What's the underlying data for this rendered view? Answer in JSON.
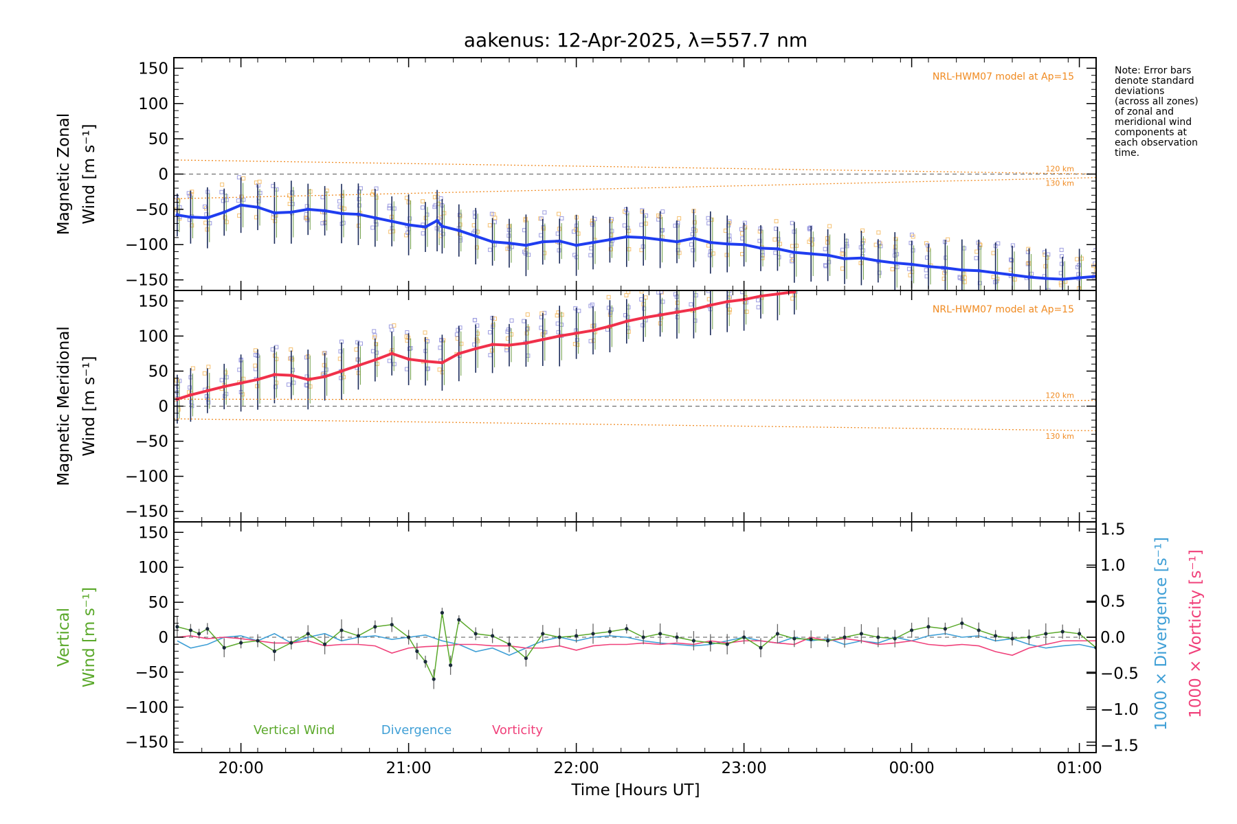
{
  "title": "aakenus: 12-Apr-2025, λ=557.7 nm",
  "note_lines": [
    "Note: Error bars",
    "denote standard",
    "deviations",
    "(across all zones)",
    "of zonal and",
    "meridional wind",
    "components at",
    "each observation",
    "time."
  ],
  "xlabel": "Time [Hours UT]",
  "colors": {
    "zonal": "#1f3df0",
    "meridional": "#f0304a",
    "vertical": "#5aa82a",
    "divergence": "#3f9fd6",
    "vorticity": "#f0407a",
    "model": "#f08a20",
    "scatter": "#9c9ce0"
  },
  "chart_data": [
    {
      "type": "line",
      "panel": "zonal",
      "ylabel": [
        "Magnetic Zonal",
        "Wind [m s⁻¹]"
      ],
      "ylim": [
        -165,
        165
      ],
      "yticks": [
        "150",
        "100",
        "50",
        "0",
        "−50",
        "−100",
        "−150"
      ],
      "model_label": "NRL-HWM07 model at Ap=15",
      "model_alt_labels": [
        "120 km",
        "130 km"
      ],
      "xlim_hours": [
        19.6,
        25.1
      ],
      "xticks": [
        "20:00",
        "21:00",
        "22:00",
        "23:00",
        "00:00",
        "01:00"
      ],
      "series": [
        {
          "name": "Zonal wind",
          "x": [
            19.62,
            19.7,
            19.8,
            19.9,
            20.0,
            20.1,
            20.2,
            20.3,
            20.4,
            20.5,
            20.6,
            20.7,
            20.8,
            20.9,
            21.0,
            21.1,
            21.17,
            21.2,
            21.3,
            21.4,
            21.5,
            21.6,
            21.7,
            21.8,
            21.9,
            22.0,
            22.1,
            22.2,
            22.3,
            22.4,
            22.5,
            22.6,
            22.7,
            22.8,
            22.9,
            23.0,
            23.1,
            23.2,
            23.3,
            23.4,
            23.5,
            23.6,
            23.7,
            23.8,
            23.9,
            24.0,
            24.1,
            24.2,
            24.3,
            24.4,
            24.5,
            24.6,
            24.7,
            24.8,
            24.9,
            25.0,
            25.1
          ],
          "values": [
            -58,
            -61,
            -62,
            -54,
            -44,
            -47,
            -55,
            -54,
            -50,
            -52,
            -56,
            -57,
            -62,
            -67,
            -72,
            -75,
            -66,
            -74,
            -80,
            -88,
            -96,
            -98,
            -101,
            -96,
            -95,
            -101,
            -97,
            -93,
            -89,
            -90,
            -93,
            -96,
            -91,
            -97,
            -99,
            -100,
            -105,
            -106,
            -111,
            -113,
            -115,
            -120,
            -119,
            -123,
            -126,
            -128,
            -131,
            -133,
            -136,
            -137,
            -140,
            -143,
            -146,
            -148,
            -149,
            -147,
            -145
          ]
        },
        {
          "name": "Model 120 km (zonal)",
          "x": [
            19.6,
            25.1
          ],
          "values": [
            20,
            0
          ]
        },
        {
          "name": "Model 130 km (zonal)",
          "x": [
            19.6,
            25.1
          ],
          "values": [
            -35,
            -5
          ]
        }
      ]
    },
    {
      "type": "line",
      "panel": "meridional",
      "ylabel": [
        "Magnetic Meridional",
        "Wind [m s⁻¹]"
      ],
      "ylim": [
        -165,
        165
      ],
      "yticks": [
        "150",
        "100",
        "50",
        "0",
        "−50",
        "−100",
        "−150"
      ],
      "model_label": "NRL-HWM07 model at Ap=15",
      "model_alt_labels": [
        "120 km",
        "130 km"
      ],
      "series": [
        {
          "name": "Meridional wind",
          "x": [
            19.62,
            19.7,
            19.8,
            19.9,
            20.0,
            20.1,
            20.2,
            20.3,
            20.4,
            20.5,
            20.6,
            20.7,
            20.8,
            20.9,
            21.0,
            21.1,
            21.2,
            21.3,
            21.4,
            21.5,
            21.6,
            21.7,
            21.8,
            21.9,
            22.0,
            22.1,
            22.2,
            22.3,
            22.4,
            22.5,
            22.6,
            22.7,
            22.8,
            22.9,
            23.0,
            23.1,
            23.2,
            23.3
          ],
          "values": [
            10,
            16,
            22,
            28,
            33,
            38,
            45,
            44,
            38,
            42,
            50,
            58,
            66,
            75,
            67,
            64,
            62,
            75,
            82,
            88,
            87,
            90,
            95,
            100,
            104,
            108,
            114,
            121,
            126,
            130,
            134,
            138,
            144,
            149,
            152,
            157,
            160,
            163
          ]
        },
        {
          "name": "Model 120 km (meridional)",
          "x": [
            19.6,
            25.1
          ],
          "values": [
            10,
            8
          ]
        },
        {
          "name": "Model 130 km (meridional)",
          "x": [
            19.6,
            25.1
          ],
          "values": [
            -18,
            -35
          ]
        }
      ]
    },
    {
      "type": "line",
      "panel": "vertical",
      "ylabel": [
        "Vertical",
        "Wind [m s⁻¹]"
      ],
      "ylim": [
        -165,
        165
      ],
      "yticks": [
        "150",
        "100",
        "50",
        "0",
        "−50",
        "−100",
        "−150"
      ],
      "y2label": [
        "1000 × Divergence [s⁻¹]",
        "1000 × Vorticity [s⁻¹]"
      ],
      "y2lim": [
        -1.6,
        1.6
      ],
      "y2ticks": [
        "1.5",
        "1.0",
        "0.5",
        "0.0",
        "−0.5",
        "−1.0",
        "−1.5"
      ],
      "legend": [
        "Vertical Wind",
        "Divergence",
        "Vorticity"
      ],
      "series": [
        {
          "name": "Vertical Wind",
          "x": [
            19.62,
            19.7,
            19.75,
            19.8,
            19.9,
            20.0,
            20.1,
            20.2,
            20.3,
            20.4,
            20.5,
            20.6,
            20.7,
            20.8,
            20.9,
            21.0,
            21.05,
            21.1,
            21.15,
            21.2,
            21.25,
            21.3,
            21.4,
            21.5,
            21.6,
            21.7,
            21.8,
            21.9,
            22.0,
            22.1,
            22.2,
            22.3,
            22.4,
            22.5,
            22.6,
            22.7,
            22.8,
            22.9,
            23.0,
            23.1,
            23.2,
            23.3,
            23.4,
            23.5,
            23.6,
            23.7,
            23.8,
            23.9,
            24.0,
            24.1,
            24.2,
            24.3,
            24.4,
            24.5,
            24.6,
            24.7,
            24.8,
            24.9,
            25.0,
            25.1
          ],
          "values": [
            15,
            10,
            5,
            12,
            -15,
            -8,
            -5,
            -20,
            -8,
            5,
            -10,
            10,
            2,
            15,
            18,
            0,
            -20,
            -35,
            -60,
            35,
            -40,
            25,
            5,
            2,
            -10,
            -30,
            5,
            0,
            2,
            5,
            8,
            12,
            0,
            5,
            0,
            -5,
            -8,
            -10,
            0,
            -15,
            5,
            -2,
            -3,
            -5,
            0,
            5,
            0,
            -2,
            10,
            15,
            12,
            20,
            10,
            2,
            -2,
            0,
            5,
            8,
            5,
            -15
          ]
        },
        {
          "name": "Divergence",
          "x": [
            19.62,
            19.7,
            19.8,
            19.9,
            20.0,
            20.1,
            20.2,
            20.3,
            20.4,
            20.5,
            20.6,
            20.7,
            20.8,
            20.9,
            21.0,
            21.1,
            21.2,
            21.3,
            21.4,
            21.5,
            21.6,
            21.7,
            21.8,
            21.9,
            22.0,
            22.1,
            22.2,
            22.3,
            22.4,
            22.5,
            22.6,
            22.7,
            22.8,
            22.9,
            23.0,
            23.1,
            23.2,
            23.3,
            23.4,
            23.5,
            23.6,
            23.7,
            23.8,
            23.9,
            24.0,
            24.1,
            24.2,
            24.3,
            24.4,
            24.5,
            24.6,
            24.7,
            24.8,
            24.9,
            25.0,
            25.1
          ],
          "values": [
            -0.05,
            -0.15,
            -0.1,
            0.0,
            0.02,
            -0.05,
            0.05,
            -0.08,
            0.0,
            0.05,
            -0.05,
            0.0,
            0.02,
            -0.03,
            0.0,
            0.03,
            -0.05,
            -0.1,
            -0.2,
            -0.15,
            -0.25,
            -0.15,
            -0.05,
            0.0,
            -0.05,
            0.0,
            0.02,
            0.0,
            -0.05,
            -0.08,
            -0.1,
            -0.12,
            -0.1,
            -0.05,
            0.0,
            -0.05,
            -0.08,
            0.0,
            -0.05,
            -0.02,
            -0.1,
            -0.05,
            -0.08,
            0.0,
            -0.05,
            0.02,
            0.05,
            0.0,
            0.02,
            -0.05,
            -0.02,
            -0.1,
            -0.15,
            -0.12,
            -0.1,
            -0.15
          ]
        },
        {
          "name": "Vorticity",
          "x": [
            19.62,
            19.7,
            19.8,
            19.9,
            20.0,
            20.1,
            20.2,
            20.3,
            20.4,
            20.5,
            20.6,
            20.7,
            20.8,
            20.9,
            21.0,
            21.1,
            21.2,
            21.3,
            21.4,
            21.5,
            21.6,
            21.7,
            21.8,
            21.9,
            22.0,
            22.1,
            22.2,
            22.3,
            22.4,
            22.5,
            22.6,
            22.7,
            22.8,
            22.9,
            23.0,
            23.1,
            23.2,
            23.3,
            23.4,
            23.5,
            23.6,
            23.7,
            23.8,
            23.9,
            24.0,
            24.1,
            24.2,
            24.3,
            24.4,
            24.5,
            24.6,
            24.7,
            24.8,
            24.9,
            25.0,
            25.1
          ],
          "values": [
            0.0,
            0.02,
            -0.02,
            0.0,
            -0.02,
            -0.05,
            -0.08,
            -0.08,
            -0.05,
            -0.12,
            -0.1,
            -0.1,
            -0.12,
            -0.22,
            -0.15,
            -0.13,
            -0.12,
            -0.1,
            -0.1,
            -0.12,
            -0.12,
            -0.15,
            -0.15,
            -0.12,
            -0.18,
            -0.12,
            -0.1,
            -0.1,
            -0.08,
            -0.1,
            -0.08,
            -0.1,
            -0.05,
            -0.08,
            -0.05,
            -0.05,
            -0.08,
            -0.1,
            0.0,
            -0.05,
            -0.02,
            -0.05,
            -0.1,
            -0.08,
            -0.05,
            -0.1,
            -0.12,
            -0.1,
            -0.12,
            -0.2,
            -0.25,
            -0.15,
            -0.1,
            -0.05,
            -0.05,
            -0.05
          ]
        }
      ]
    }
  ]
}
